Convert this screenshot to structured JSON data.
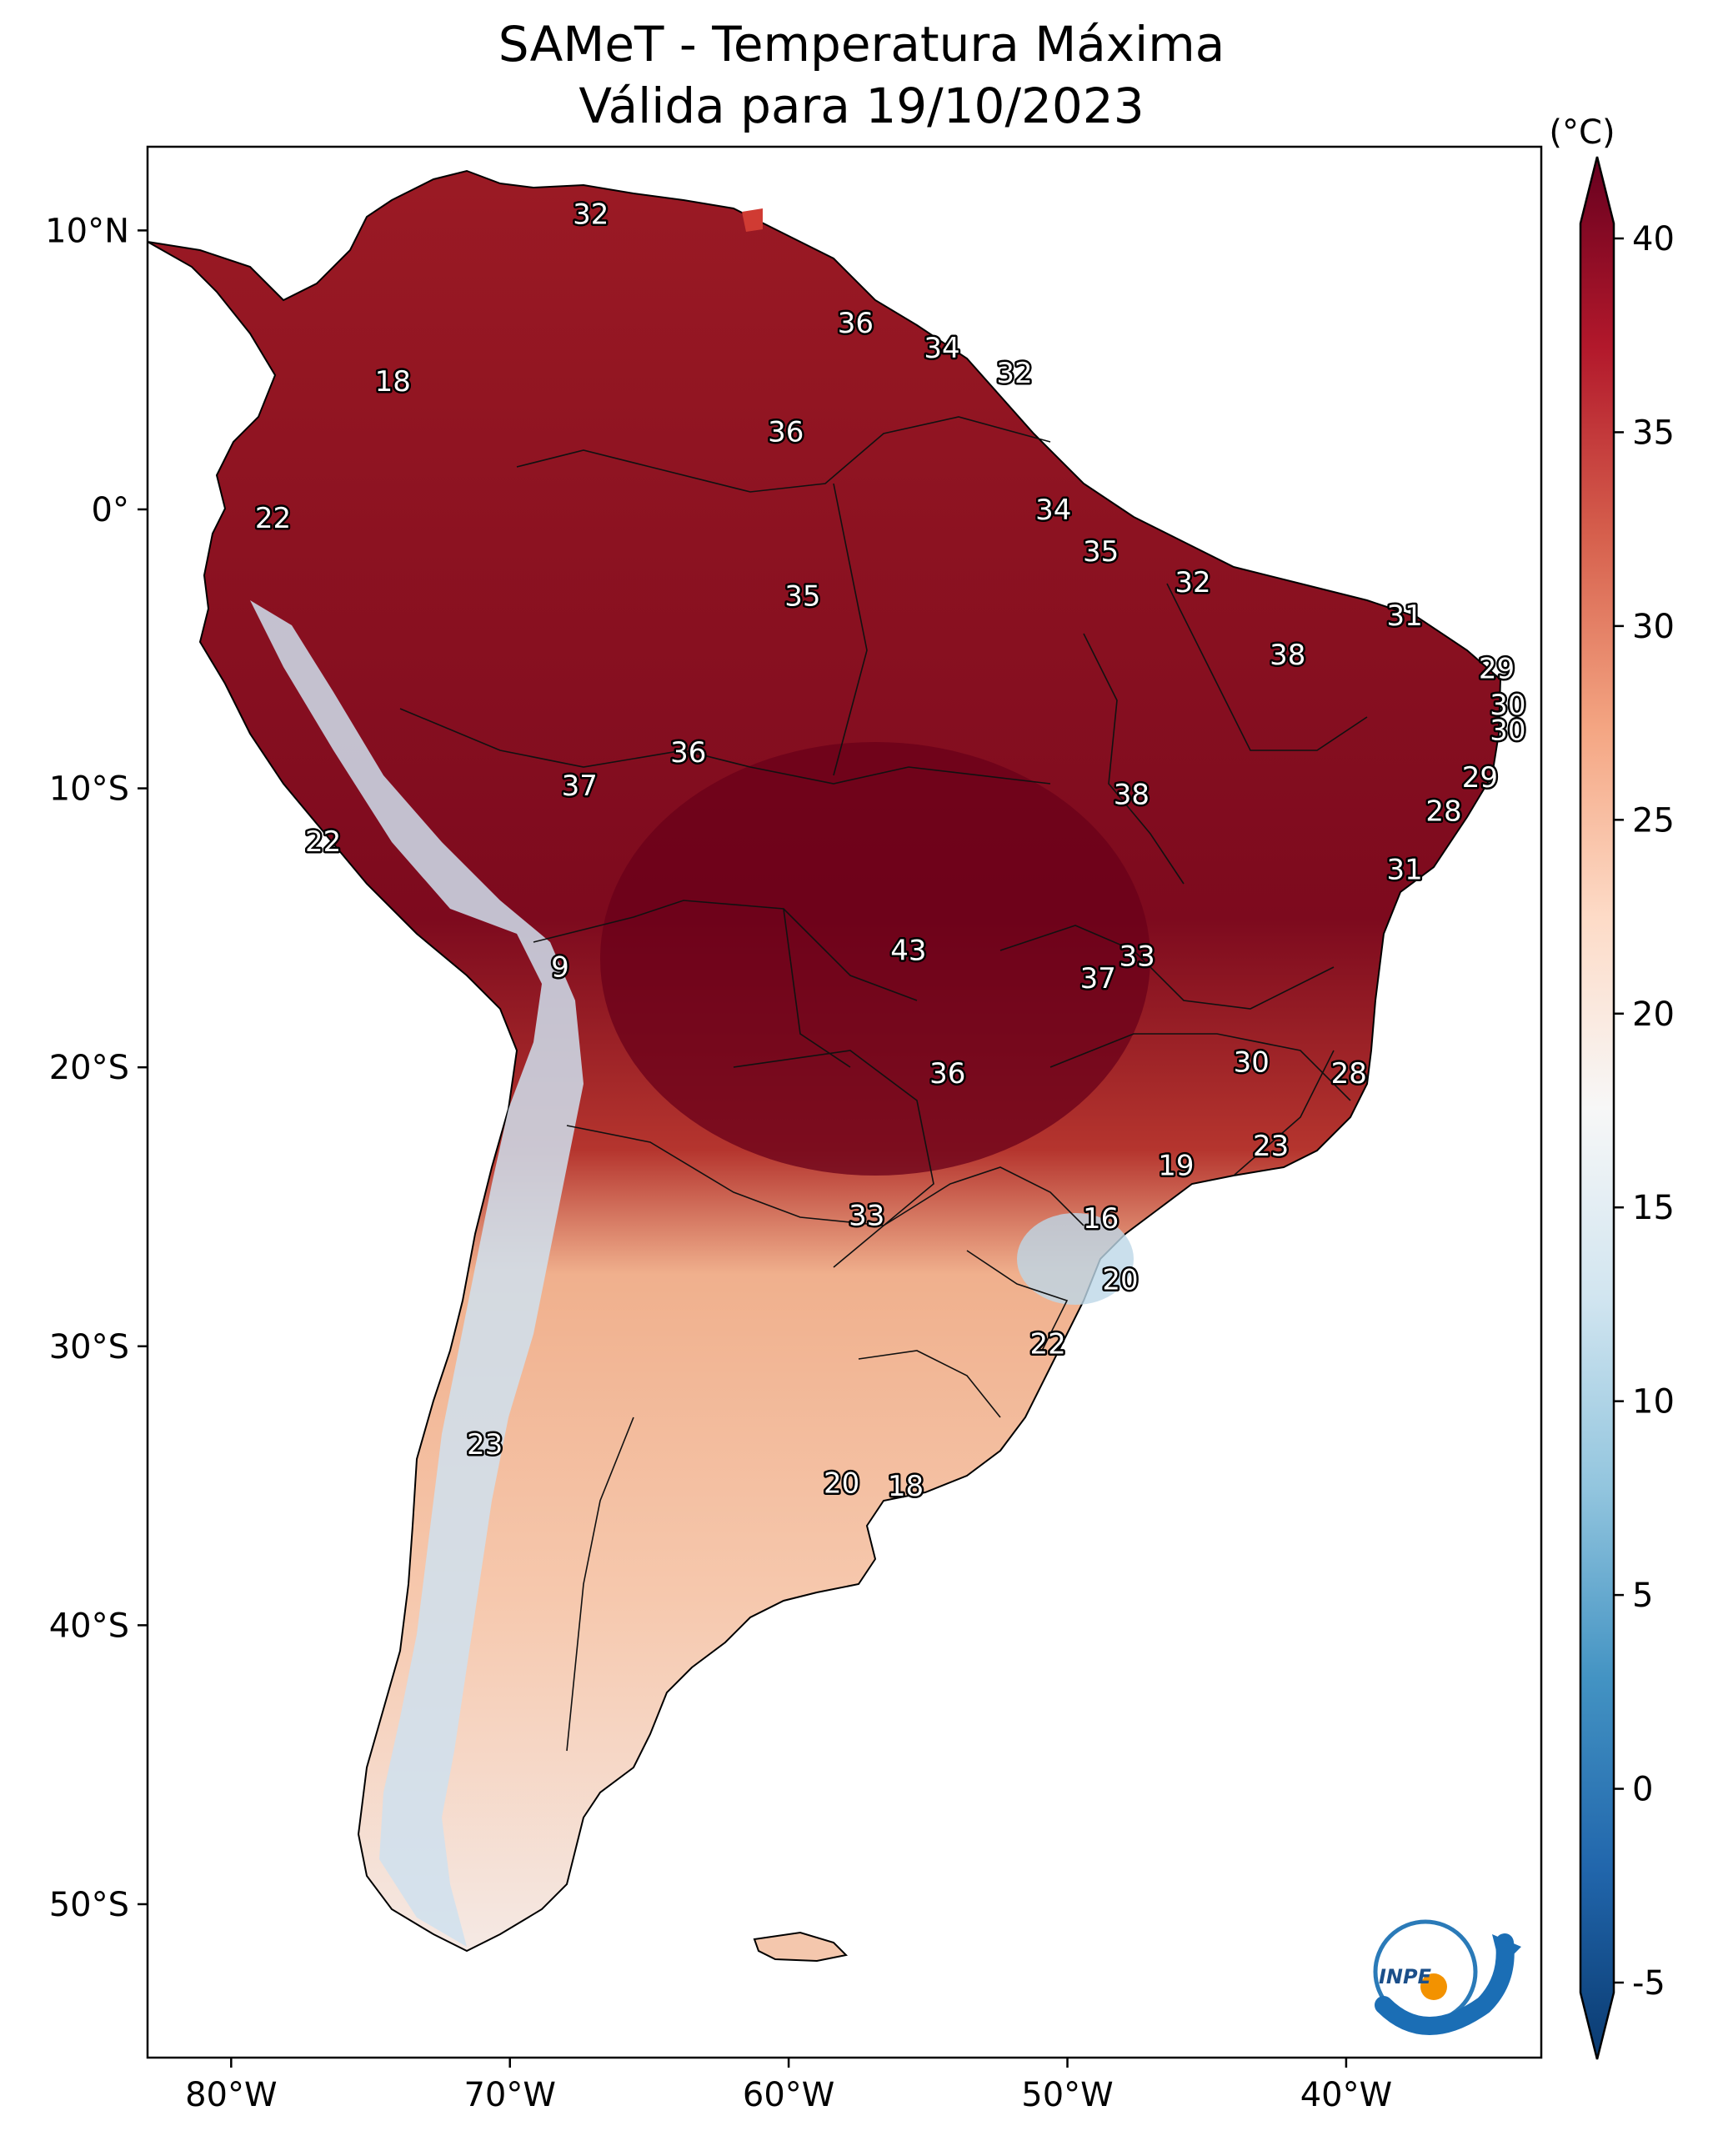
{
  "title": {
    "line1": "SAMeT - Temperatura Máxima",
    "line2": "Válida para 19/10/2023"
  },
  "map": {
    "lat_ticks": [
      "10°N",
      "0°",
      "10°S",
      "20°S",
      "30°S",
      "40°S",
      "50°S"
    ],
    "lon_ticks": [
      "80°W",
      "70°W",
      "60°W",
      "50°W",
      "40°W"
    ],
    "lon_range": [
      -83,
      -33
    ],
    "lat_range": [
      -55.5,
      13
    ],
    "labels": [
      {
        "text": "32",
        "lon": -67.1,
        "lat": 10.6
      },
      {
        "text": "36",
        "lon": -57.6,
        "lat": 6.7
      },
      {
        "text": "34",
        "lon": -54.5,
        "lat": 5.8
      },
      {
        "text": "32",
        "lon": -51.9,
        "lat": 4.9
      },
      {
        "text": "18",
        "lon": -74.2,
        "lat": 4.6
      },
      {
        "text": "36",
        "lon": -60.1,
        "lat": 2.8
      },
      {
        "text": "22",
        "lon": -78.5,
        "lat": -0.3
      },
      {
        "text": "34",
        "lon": -50.5,
        "lat": 0
      },
      {
        "text": "35",
        "lon": -48.8,
        "lat": -1.5
      },
      {
        "text": "32",
        "lon": -45.5,
        "lat": -2.6
      },
      {
        "text": "35",
        "lon": -59.5,
        "lat": -3.1
      },
      {
        "text": "31",
        "lon": -37.9,
        "lat": -3.8
      },
      {
        "text": "38",
        "lon": -42.1,
        "lat": -5.2
      },
      {
        "text": "29",
        "lon": -34.6,
        "lat": -5.7
      },
      {
        "text": "30",
        "lon": -34.2,
        "lat": -7
      },
      {
        "text": "30",
        "lon": -34.2,
        "lat": -7.9
      },
      {
        "text": "36",
        "lon": -63.6,
        "lat": -8.7
      },
      {
        "text": "37",
        "lon": -67.5,
        "lat": -9.9
      },
      {
        "text": "29",
        "lon": -35.2,
        "lat": -9.6
      },
      {
        "text": "38",
        "lon": -47.7,
        "lat": -10.2
      },
      {
        "text": "28",
        "lon": -36.5,
        "lat": -10.8
      },
      {
        "text": "22",
        "lon": -76.7,
        "lat": -11.9
      },
      {
        "text": "31",
        "lon": -37.9,
        "lat": -12.9
      },
      {
        "text": "43",
        "lon": -55.7,
        "lat": -15.8
      },
      {
        "text": "33",
        "lon": -47.5,
        "lat": -16
      },
      {
        "text": "37",
        "lon": -48.9,
        "lat": -16.8
      },
      {
        "text": "9",
        "lon": -68.2,
        "lat": -16.4
      },
      {
        "text": "30",
        "lon": -43.4,
        "lat": -19.8
      },
      {
        "text": "36",
        "lon": -54.3,
        "lat": -20.2
      },
      {
        "text": "28",
        "lon": -39.9,
        "lat": -20.2
      },
      {
        "text": "23",
        "lon": -42.7,
        "lat": -22.8
      },
      {
        "text": "19",
        "lon": -46.1,
        "lat": -23.5
      },
      {
        "text": "33",
        "lon": -57.2,
        "lat": -25.3
      },
      {
        "text": "16",
        "lon": -48.8,
        "lat": -25.4
      },
      {
        "text": "20",
        "lon": -48.1,
        "lat": -27.6
      },
      {
        "text": "22",
        "lon": -50.7,
        "lat": -29.9
      },
      {
        "text": "23",
        "lon": -70.9,
        "lat": -33.5
      },
      {
        "text": "20",
        "lon": -58.1,
        "lat": -34.9
      },
      {
        "text": "18",
        "lon": -55.8,
        "lat": -35
      }
    ]
  },
  "colorbar": {
    "unit_label": "(°C)",
    "ticks": [
      -5,
      0,
      5,
      10,
      15,
      20,
      25,
      30,
      35,
      40
    ],
    "range": [
      -5,
      40
    ],
    "colors": [
      "#0a3a70",
      "#2166ac",
      "#4393c3",
      "#92c5de",
      "#d1e5f0",
      "#f7f7f7",
      "#fddbc7",
      "#f4a582",
      "#d6604d",
      "#b2182b",
      "#67001f"
    ]
  },
  "logo_text": "INPE"
}
